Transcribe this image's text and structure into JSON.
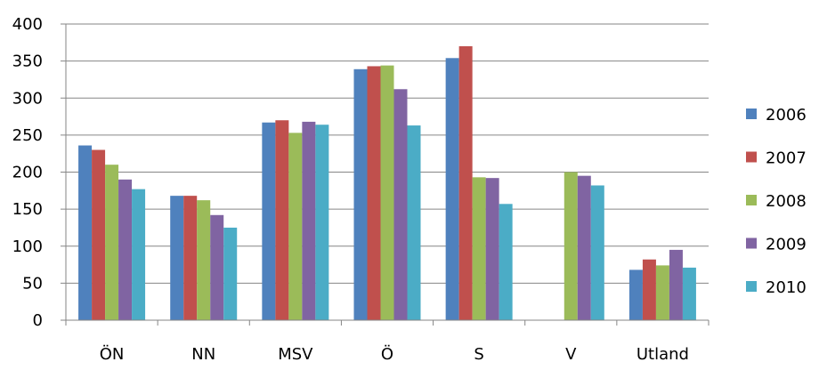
{
  "chart_data": {
    "type": "bar",
    "title": "",
    "xlabel": "",
    "ylabel": "",
    "categories": [
      "ÖN",
      "NN",
      "MSV",
      "Ö",
      "S",
      "V",
      "Utland"
    ],
    "ylim": [
      0,
      400
    ],
    "yticks": [
      0,
      50,
      100,
      150,
      200,
      250,
      300,
      350,
      400
    ],
    "grid": true,
    "legend_position": "right",
    "series": [
      {
        "name": "2006",
        "color": "#4F81BD",
        "values": [
          236,
          168,
          267,
          339,
          354,
          null,
          68
        ]
      },
      {
        "name": "2007",
        "color": "#C0504D",
        "values": [
          230,
          168,
          270,
          343,
          370,
          null,
          82
        ]
      },
      {
        "name": "2008",
        "color": "#9BBB59",
        "values": [
          210,
          162,
          253,
          344,
          193,
          200,
          74
        ]
      },
      {
        "name": "2009",
        "color": "#8064A2",
        "values": [
          190,
          142,
          268,
          312,
          192,
          195,
          95
        ]
      },
      {
        "name": "2010",
        "color": "#4BACC6",
        "values": [
          177,
          125,
          264,
          263,
          157,
          182,
          71
        ]
      }
    ]
  }
}
